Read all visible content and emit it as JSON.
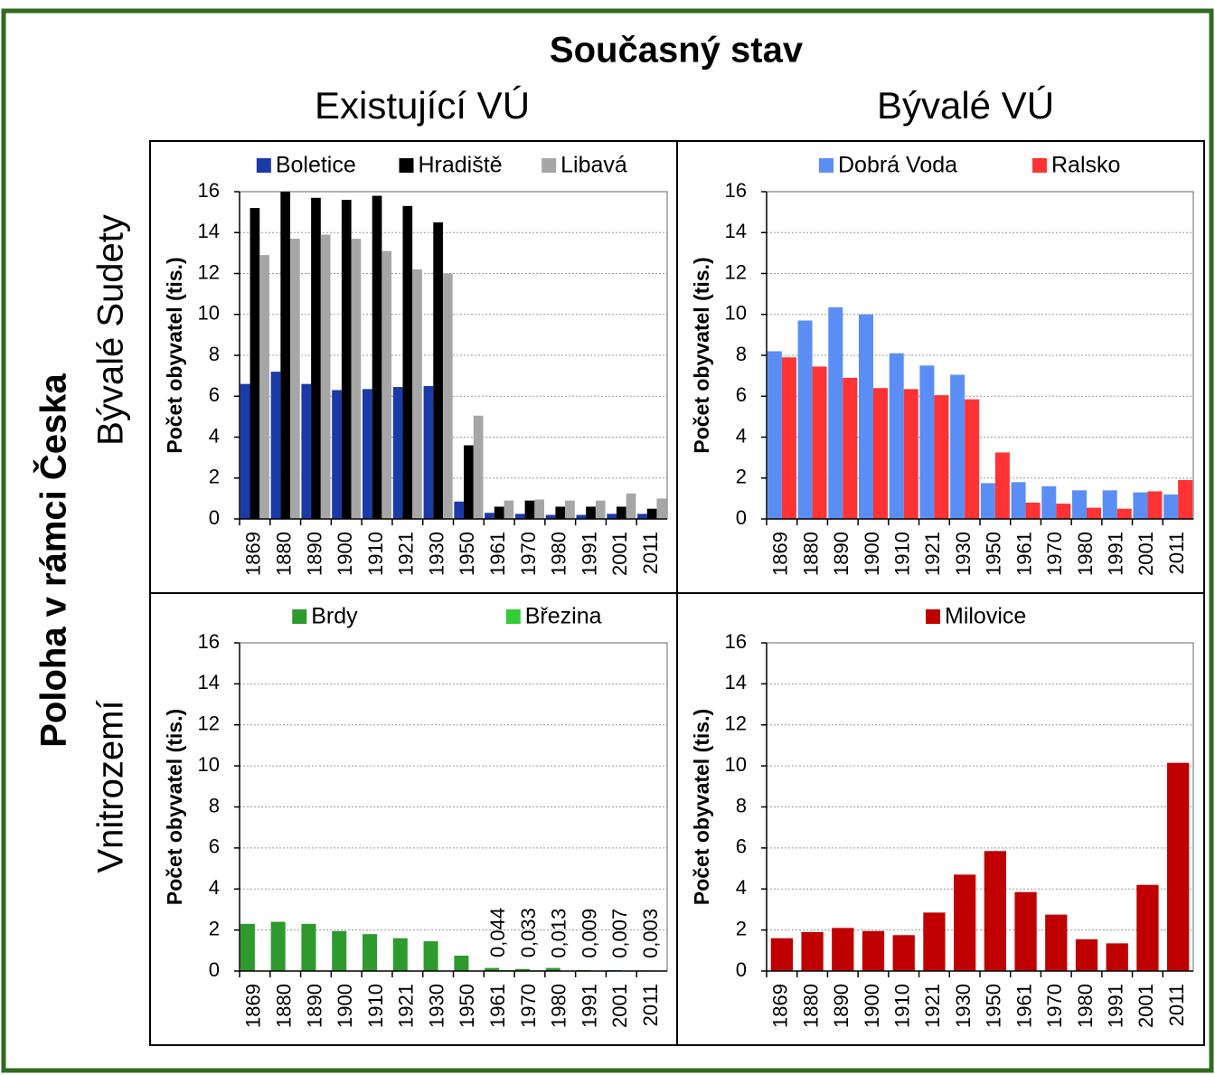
{
  "labels": {
    "title": "Současný stav",
    "columns": [
      "Existující VÚ",
      "Bývalé VÚ"
    ],
    "side_title": "Poloha v rámci Česka",
    "rows": [
      "Bývalé Sudety",
      "Vnitrozemí"
    ]
  },
  "chart_data": [
    {
      "type": "bar",
      "y_label": "Počet obyvatel (tis.)",
      "categories": [
        "1869",
        "1880",
        "1890",
        "1900",
        "1910",
        "1921",
        "1930",
        "1950",
        "1961",
        "1970",
        "1980",
        "1991",
        "2001",
        "2011"
      ],
      "series": [
        {
          "name": "Boletice",
          "color": "#1a3aa8",
          "values": [
            6.6,
            7.2,
            6.6,
            6.3,
            6.35,
            6.45,
            6.5,
            0.85,
            0.3,
            0.25,
            0.2,
            0.2,
            0.25,
            0.25
          ]
        },
        {
          "name": "Hradiště",
          "color": "#000000",
          "values": [
            15.2,
            16.0,
            15.7,
            15.6,
            15.8,
            15.3,
            14.5,
            3.6,
            0.6,
            0.9,
            0.6,
            0.6,
            0.6,
            0.5
          ]
        },
        {
          "name": "Libavá",
          "color": "#a6a6a6",
          "values": [
            12.9,
            13.7,
            13.9,
            13.7,
            13.1,
            12.2,
            12.0,
            5.05,
            0.9,
            0.95,
            0.9,
            0.9,
            1.25,
            1.0
          ]
        }
      ],
      "ylim": [
        0,
        16
      ],
      "yticks": [
        0,
        2,
        4,
        6,
        8,
        10,
        12,
        14,
        16
      ],
      "grid": true
    },
    {
      "type": "bar",
      "y_label": "Počet obyvatel (tis.)",
      "categories": [
        "1869",
        "1880",
        "1890",
        "1900",
        "1910",
        "1921",
        "1930",
        "1950",
        "1961",
        "1970",
        "1980",
        "1991",
        "2001",
        "2011"
      ],
      "series": [
        {
          "name": "Dobrá Voda",
          "color": "#5b8ef5",
          "values": [
            8.2,
            9.7,
            10.35,
            10.0,
            8.1,
            7.5,
            7.05,
            1.75,
            1.8,
            1.6,
            1.4,
            1.4,
            1.3,
            1.2
          ]
        },
        {
          "name": "Ralsko",
          "color": "#ff3333",
          "values": [
            7.9,
            7.45,
            6.9,
            6.4,
            6.35,
            6.05,
            5.85,
            3.25,
            0.8,
            0.75,
            0.55,
            0.5,
            1.35,
            1.9
          ]
        }
      ],
      "ylim": [
        0,
        16
      ],
      "yticks": [
        0,
        2,
        4,
        6,
        8,
        10,
        12,
        14,
        16
      ],
      "grid": true
    },
    {
      "type": "bar",
      "y_label": "Počet obyvatel (tis.)",
      "categories": [
        "1869",
        "1880",
        "1890",
        "1900",
        "1910",
        "1921",
        "1930",
        "1950",
        "1961",
        "1970",
        "1980",
        "1991",
        "2001",
        "2011"
      ],
      "series": [
        {
          "name": "Brdy",
          "color": "#2e9a2e",
          "values": [
            2.3,
            2.4,
            2.3,
            1.95,
            1.8,
            1.6,
            1.45,
            0.75,
            0.15,
            0.1,
            0.15,
            0.05,
            0.04,
            0.03
          ]
        },
        {
          "name": "Březina",
          "color": "#33cc33",
          "values": [
            null,
            null,
            null,
            null,
            null,
            null,
            null,
            null,
            0.044,
            0.033,
            0.013,
            0.009,
            0.007,
            0.003
          ],
          "value_labels": [
            null,
            null,
            null,
            null,
            null,
            null,
            null,
            null,
            "0,044",
            "0,033",
            "0,013",
            "0,009",
            "0,007",
            "0,003"
          ]
        }
      ],
      "ylim": [
        0,
        16
      ],
      "yticks": [
        0,
        2,
        4,
        6,
        8,
        10,
        12,
        14,
        16
      ],
      "grid": true
    },
    {
      "type": "bar",
      "y_label": "Počet obyvatel (tis.)",
      "categories": [
        "1869",
        "1880",
        "1890",
        "1900",
        "1910",
        "1921",
        "1930",
        "1950",
        "1961",
        "1970",
        "1980",
        "1991",
        "2001",
        "2011"
      ],
      "series": [
        {
          "name": "Milovice",
          "color": "#c00000",
          "values": [
            1.6,
            1.9,
            2.1,
            1.95,
            1.75,
            2.85,
            4.7,
            5.85,
            3.85,
            2.75,
            1.55,
            1.35,
            4.2,
            10.15
          ]
        }
      ],
      "ylim": [
        0,
        16
      ],
      "yticks": [
        0,
        2,
        4,
        6,
        8,
        10,
        12,
        14,
        16
      ],
      "grid": true
    }
  ]
}
